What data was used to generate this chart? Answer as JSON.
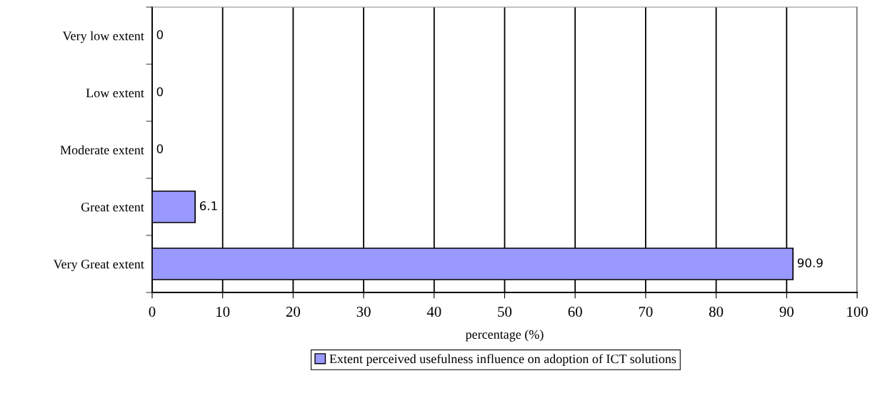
{
  "chart_data": {
    "type": "bar",
    "orientation": "horizontal",
    "categories": [
      "Very low extent",
      "Low extent",
      "Moderate extent",
      "Great extent",
      "Very Great extent"
    ],
    "series": [
      {
        "name": "Extent perceived usefulness influence on adoption of ICT solutions",
        "color": "#9999ff",
        "values": [
          0,
          0,
          0,
          6.1,
          90.9
        ]
      }
    ],
    "xlabel": "percentage (%)",
    "xlim": [
      0,
      100
    ],
    "xticks": [
      0,
      10,
      20,
      30,
      40,
      50,
      60,
      70,
      80,
      90,
      100
    ],
    "grid": "x",
    "legend": "bottom",
    "data_labels": true
  }
}
